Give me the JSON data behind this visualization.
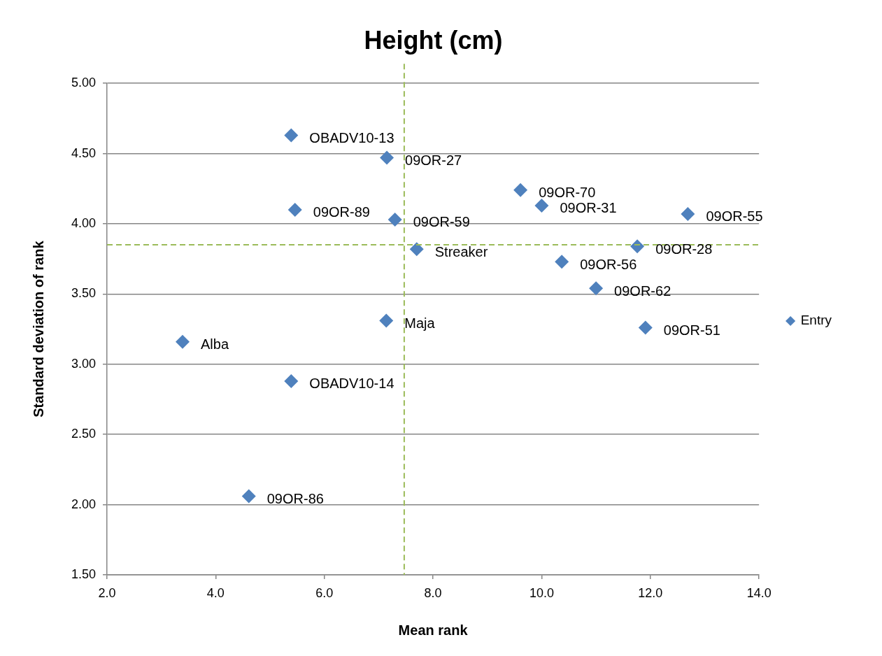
{
  "chart_data": {
    "type": "scatter",
    "title": "Height (cm)",
    "xlabel": "Mean rank",
    "ylabel": "Standard deviation of rank",
    "series": [
      {
        "name": "Entry",
        "color": "#4f81bd",
        "x": [
          5.39,
          7.15,
          9.61,
          10.0,
          12.69,
          5.46,
          7.3,
          7.7,
          11.76,
          10.37,
          11.0,
          11.91,
          7.14,
          3.39,
          5.39,
          4.61
        ],
        "values": [
          4.63,
          4.47,
          4.24,
          4.13,
          4.07,
          4.1,
          4.03,
          3.82,
          3.84,
          3.73,
          3.54,
          3.26,
          3.31,
          3.16,
          2.88,
          2.06
        ]
      }
    ],
    "annotations": [
      {
        "text": "OBADV10-13",
        "x": 5.39,
        "y": 4.63
      },
      {
        "text": "09OR-27",
        "x": 7.15,
        "y": 4.47
      },
      {
        "text": "09OR-70",
        "x": 9.61,
        "y": 4.24
      },
      {
        "text": "09OR-31",
        "x": 10.0,
        "y": 4.13
      },
      {
        "text": "09OR-55",
        "x": 12.69,
        "y": 4.07
      },
      {
        "text": "09OR-89",
        "x": 5.46,
        "y": 4.1
      },
      {
        "text": "09OR-59",
        "x": 7.3,
        "y": 4.03
      },
      {
        "text": "Streaker",
        "x": 7.7,
        "y": 3.82
      },
      {
        "text": "09OR-28",
        "x": 11.76,
        "y": 3.84
      },
      {
        "text": "09OR-56",
        "x": 10.37,
        "y": 3.73
      },
      {
        "text": "09OR-62",
        "x": 11.0,
        "y": 3.54
      },
      {
        "text": "09OR-51",
        "x": 11.91,
        "y": 3.26
      },
      {
        "text": "Maja",
        "x": 7.14,
        "y": 3.31
      },
      {
        "text": "Alba",
        "x": 3.39,
        "y": 3.16
      },
      {
        "text": "OBADV10-14",
        "x": 5.39,
        "y": 2.88
      },
      {
        "text": "09OR-86",
        "x": 4.61,
        "y": 2.06
      }
    ],
    "ref_lines": [
      {
        "axis": "x",
        "value": 7.47,
        "color": "#9bbb59",
        "line_style": "dashed"
      },
      {
        "axis": "y",
        "value": 3.85,
        "color": "#9bbb59",
        "line_style": "dashed"
      }
    ],
    "xlim": [
      2,
      14
    ],
    "xticks": [
      {
        "value": 2,
        "label": "2.0"
      },
      {
        "value": 4,
        "label": "4.0"
      },
      {
        "value": 6,
        "label": "6.0"
      },
      {
        "value": 8,
        "label": "8.0"
      },
      {
        "value": 10,
        "label": "10.0"
      },
      {
        "value": 12,
        "label": "12.0"
      },
      {
        "value": 14,
        "label": "14.0"
      }
    ],
    "ylim": [
      1.5,
      5
    ],
    "yticks": [
      {
        "value": 1.5,
        "label": "1.50"
      },
      {
        "value": 2,
        "label": "2.00"
      },
      {
        "value": 2.5,
        "label": "2.50"
      },
      {
        "value": 3,
        "label": "3.00"
      },
      {
        "value": 3.5,
        "label": "3.50"
      },
      {
        "value": 4,
        "label": "4.00"
      },
      {
        "value": 4.5,
        "label": "4.50"
      },
      {
        "value": 5,
        "label": "5.00"
      }
    ],
    "grid": "y",
    "legend": "right",
    "marker": "diamond"
  }
}
